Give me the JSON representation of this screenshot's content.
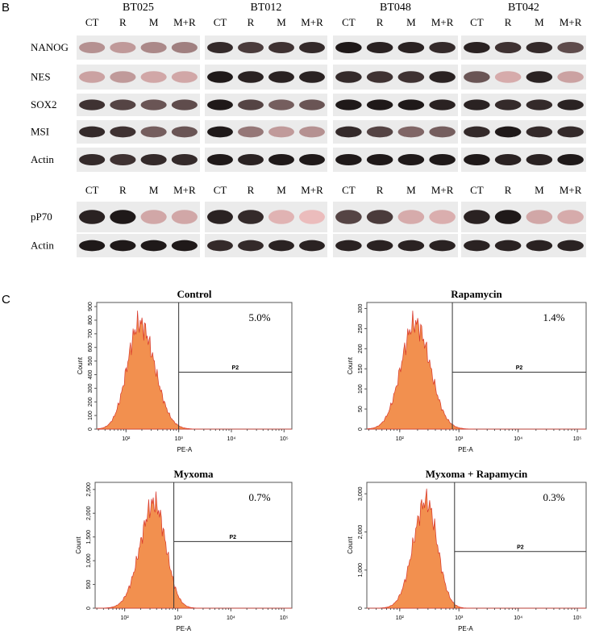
{
  "panel_b": {
    "label": "B",
    "groups": [
      "BT025",
      "BT012",
      "BT048",
      "BT042"
    ],
    "lanes": [
      "CT",
      "R",
      "M",
      "M+R"
    ],
    "markers_top": [
      "NANOG",
      "NES",
      "SOX2",
      "MSI",
      "Actin"
    ],
    "markers_bottom": [
      "pP70",
      "Actin"
    ]
  },
  "panel_c": {
    "label": "C",
    "xlabel": "PE-A",
    "ylabel": "Count",
    "gate": "P2",
    "xticks": [
      "10²",
      "10³",
      "10⁴",
      "10⁵"
    ],
    "plots": [
      {
        "title": "Control",
        "percent": "5.0%",
        "yticks": [
          "0",
          "100",
          "200",
          "300",
          "400",
          "500",
          "600",
          "700",
          "800",
          "900"
        ]
      },
      {
        "title": "Rapamycin",
        "percent": "1.4%",
        "yticks": [
          "0",
          "50",
          "100",
          "150",
          "200",
          "250",
          "300"
        ]
      },
      {
        "title": "Myxoma",
        "percent": "0.7%",
        "yticks": [
          "0",
          "500",
          "1,000",
          "1,500",
          "2,000",
          "2,500"
        ]
      },
      {
        "title": "Myxoma + Rapamycin",
        "percent": "0.3%",
        "yticks": [
          "0",
          "1,000",
          "2,000",
          "3,000"
        ]
      }
    ]
  }
}
